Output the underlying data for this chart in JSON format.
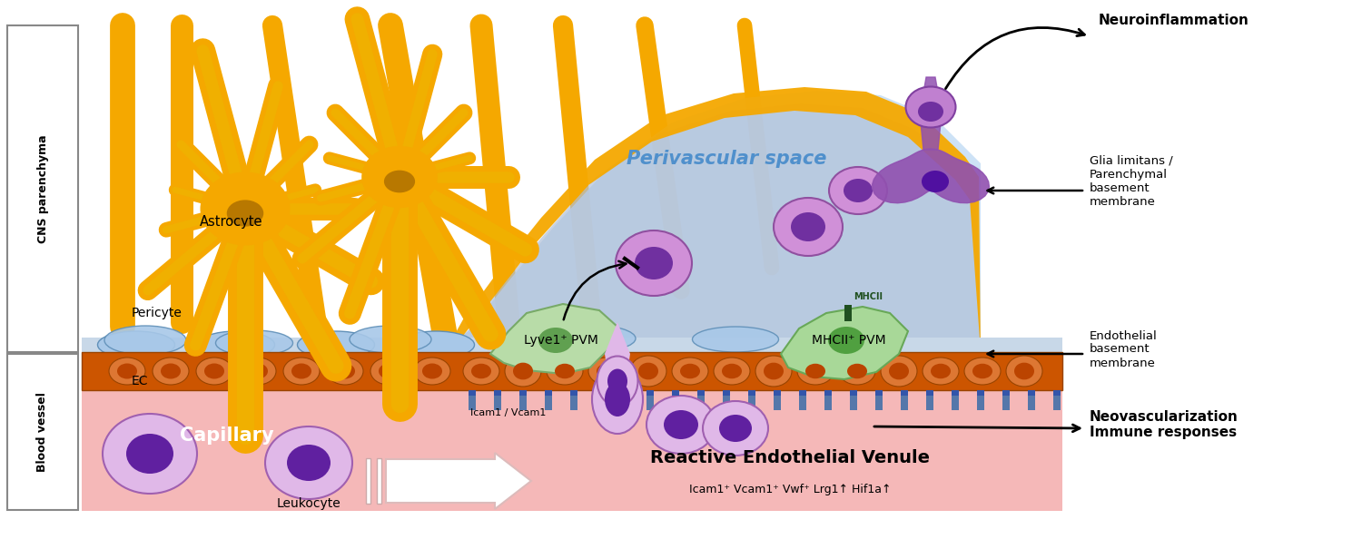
{
  "fig_width": 15.0,
  "fig_height": 5.94,
  "bg_white": "#ffffff",
  "blood_vessel_bg": "#f5b8b8",
  "astrocyte_color": "#f5a800",
  "astrocyte_nucleus": "#b87800",
  "perivascular_space_color": "#c8dff5",
  "pericyte_color": "#a8c8e8",
  "pericyte_edge": "#6090b8",
  "lyve1_color": "#b8dca8",
  "lyve1_edge": "#78aa68",
  "mhcii_pvm_color": "#a8d898",
  "mhcii_pvm_edge": "#68a858",
  "ec_layer_color": "#cc5500",
  "ec_cell_color": "#dd7733",
  "ec_nucleus_color": "#bb4400",
  "spike_color": "#5577aa",
  "leukocyte_outer": "#d8a8e0",
  "leukocyte_inner": "#6020a0",
  "immune_pvs_outer": "#c890d8",
  "immune_pvs_inner": "#7030a0",
  "migrating_cell_color": "#7030a0",
  "glia_limitans_yellow": "#f5a800",
  "glia_limitans_inner": "#b8ccdc",
  "arrow_color": "#000000",
  "label_cns": "CNS parenchyma",
  "label_blood_vessel": "Blood vessel",
  "label_astrocyte": "Astrocyte",
  "label_pericyte": "Pericyte",
  "label_ec": "EC",
  "label_capillary": "Capillary",
  "label_leukocyte": "Leukocyte",
  "label_lyve1": "Lyve1⁺ PVM",
  "label_mhcii_pvm": "MHCII⁺ PVM",
  "label_perivascular": "Perivascular space",
  "label_neuroinflammation": "Neuroinflammation",
  "label_glia": "Glia limitans /\nParenchymal\nbasement\nmembrane",
  "label_endothelial": "Endothelial\nbasement\nmembrane",
  "label_neovascularization": "Neovascularization\nImmune responses",
  "label_reactive": "Reactive Endothelial Venule",
  "label_icam_vcam": "Icam1 / Vcam1",
  "label_reactive_sub": "Icam1⁺ Vcam1⁺ Vwf⁺ Lrg1↑ Hif1a↑",
  "label_mhcii_marker": "MHCII"
}
